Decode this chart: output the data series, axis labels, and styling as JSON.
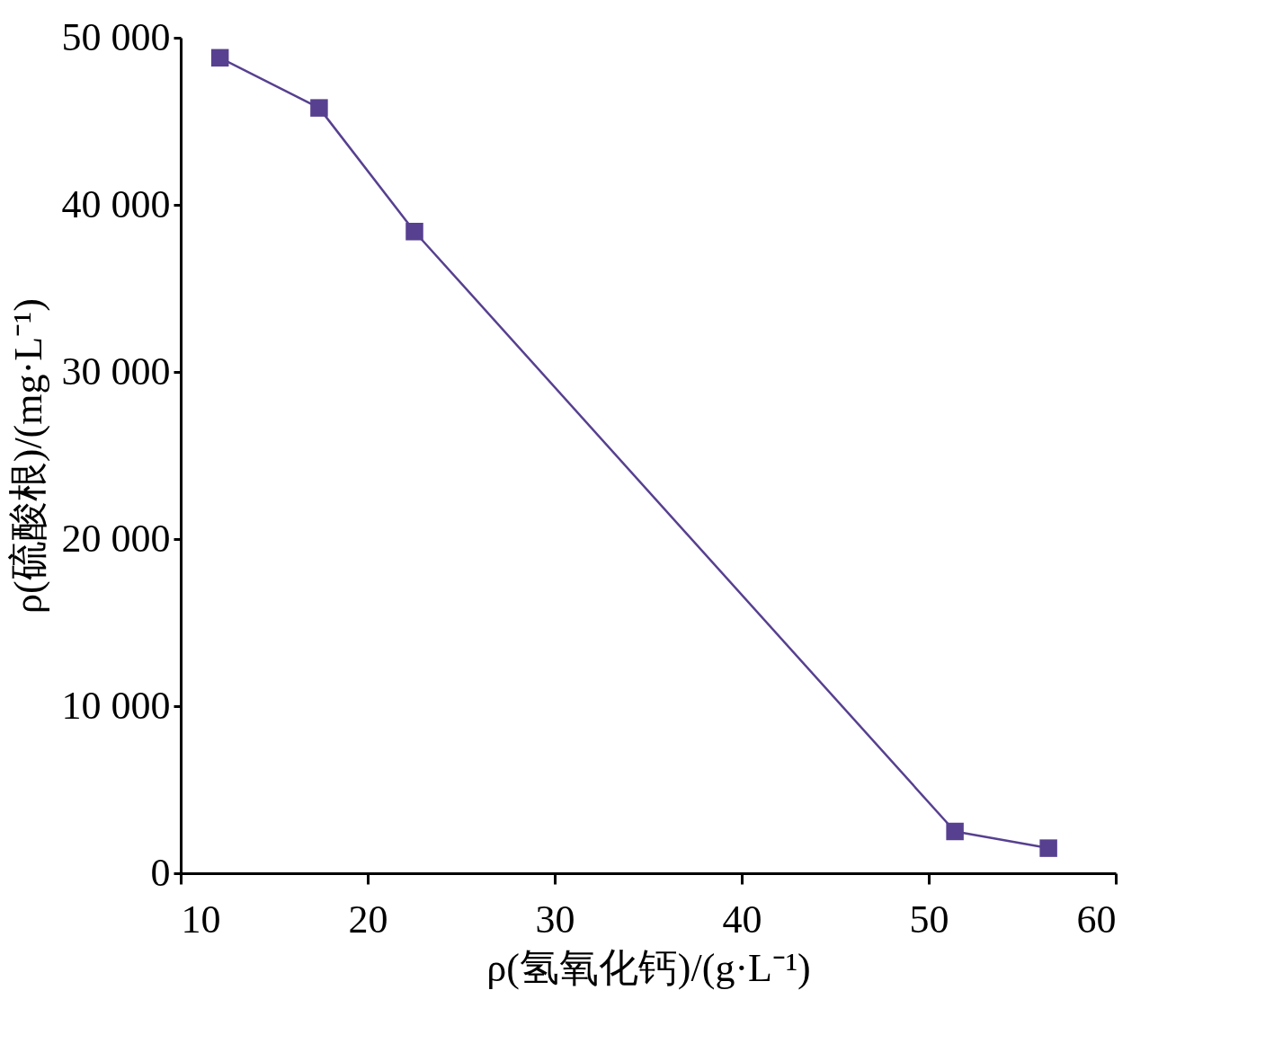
{
  "chart_data": {
    "type": "line",
    "xlabel": "ρ(氢氧化钙)/(g·L⁻¹)",
    "ylabel": "ρ(硫酸根)/(mg·L⁻¹)",
    "x": [
      12.1,
      17.4,
      22.5,
      51.4,
      56.4
    ],
    "series": [
      {
        "color": "#574090",
        "values": [
          48800,
          45800,
          38400,
          2500,
          1500
        ]
      }
    ],
    "xlim": [
      10,
      60
    ],
    "xticks": [
      10,
      20,
      30,
      40,
      50,
      60
    ],
    "ylim": [
      0,
      50000
    ],
    "yticks": [
      0,
      {
        "value": 10000,
        "label": "10 000"
      },
      {
        "value": 20000,
        "label": "20 000"
      },
      {
        "value": 30000,
        "label": "30 000"
      },
      {
        "value": 40000,
        "label": "40 000"
      },
      {
        "value": 50000,
        "label": "50 000"
      }
    ],
    "grid": false,
    "marker": "square",
    "line_style": "solid"
  }
}
